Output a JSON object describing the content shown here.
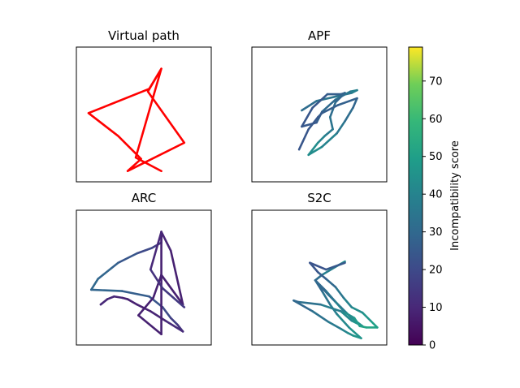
{
  "chart_data": [
    {
      "type": "line",
      "title": "Virtual path",
      "xlim": [
        0,
        1
      ],
      "ylim": [
        0,
        1
      ],
      "grid": false,
      "color": "#ff0000",
      "series": [
        {
          "x": [
            0.63,
            0.53,
            0.8,
            0.38,
            0.48,
            0.31,
            0.09,
            0.54,
            0.63,
            0.44,
            0.63
          ],
          "y": [
            0.84,
            0.67,
            0.29,
            0.08,
            0.17,
            0.34,
            0.51,
            0.69,
            0.84,
            0.18,
            0.08
          ],
          "scores": []
        }
      ]
    },
    {
      "type": "line",
      "title": "APF",
      "xlim": [
        0,
        1
      ],
      "ylim": [
        0,
        1
      ],
      "grid": false,
      "series": [
        {
          "x": [
            0.37,
            0.48,
            0.74,
            0.78
          ],
          "y": [
            0.53,
            0.6,
            0.66,
            0.68
          ],
          "scores": [
            30,
            33,
            36,
            40
          ]
        },
        {
          "x": [
            0.78,
            0.73,
            0.62,
            0.52,
            0.48,
            0.37
          ],
          "y": [
            0.68,
            0.67,
            0.61,
            0.52,
            0.44,
            0.41
          ],
          "scores": [
            40,
            38,
            33,
            28,
            26,
            24
          ]
        },
        {
          "x": [
            0.37,
            0.45,
            0.56,
            0.66,
            0.69
          ],
          "y": [
            0.41,
            0.55,
            0.65,
            0.65,
            0.66
          ],
          "scores": [
            24,
            24,
            25,
            28,
            28
          ]
        },
        {
          "x": [
            0.69,
            0.62,
            0.58,
            0.6,
            0.54,
            0.49,
            0.42
          ],
          "y": [
            0.66,
            0.59,
            0.48,
            0.39,
            0.34,
            0.29,
            0.2
          ],
          "scores": [
            28,
            30,
            33,
            35,
            38,
            42,
            45
          ]
        },
        {
          "x": [
            0.42,
            0.52,
            0.63,
            0.69,
            0.75,
            0.78
          ],
          "y": [
            0.2,
            0.26,
            0.36,
            0.45,
            0.55,
            0.62
          ],
          "scores": [
            45,
            42,
            38,
            33,
            30,
            28
          ]
        },
        {
          "x": [
            0.78,
            0.64,
            0.52,
            0.49,
            0.42,
            0.35
          ],
          "y": [
            0.62,
            0.57,
            0.51,
            0.48,
            0.39,
            0.24
          ],
          "scores": [
            28,
            27,
            26,
            25,
            24,
            24
          ]
        }
      ]
    },
    {
      "type": "line",
      "title": "ARC",
      "xlim": [
        0,
        1
      ],
      "ylim": [
        0,
        1
      ],
      "grid": false,
      "series": [
        {
          "x": [
            0.63,
            0.63,
            0.56,
            0.45,
            0.31,
            0.26,
            0.16,
            0.11
          ],
          "y": [
            0.84,
            0.76,
            0.72,
            0.68,
            0.61,
            0.57,
            0.49,
            0.41
          ],
          "scores": [
            10,
            14,
            18,
            22,
            26,
            28,
            30,
            30
          ]
        },
        {
          "x": [
            0.11,
            0.34,
            0.54,
            0.64,
            0.7,
            0.75,
            0.79
          ],
          "y": [
            0.41,
            0.4,
            0.36,
            0.28,
            0.2,
            0.15,
            0.1
          ],
          "scores": [
            30,
            28,
            25,
            22,
            18,
            15,
            12
          ]
        },
        {
          "x": [
            0.79,
            0.66,
            0.55,
            0.45,
            0.38,
            0.34,
            0.28,
            0.23,
            0.18
          ],
          "y": [
            0.1,
            0.18,
            0.25,
            0.3,
            0.34,
            0.35,
            0.36,
            0.34,
            0.3
          ],
          "scores": [
            12,
            10,
            8,
            8,
            8,
            8,
            10,
            10,
            10
          ]
        },
        {
          "x": [
            0.63,
            0.7,
            0.79,
            0.63,
            0.57,
            0.46
          ],
          "y": [
            0.84,
            0.7,
            0.3,
            0.52,
            0.35,
            0.22
          ],
          "scores": [
            10,
            8,
            8,
            8,
            8,
            8
          ]
        },
        {
          "x": [
            0.46,
            0.63,
            0.63,
            0.55,
            0.64,
            0.8
          ],
          "y": [
            0.22,
            0.08,
            0.84,
            0.56,
            0.42,
            0.28
          ],
          "scores": [
            8,
            8,
            8,
            12,
            14,
            16
          ]
        }
      ]
    },
    {
      "type": "line",
      "title": "S2C",
      "xlim": [
        0,
        1
      ],
      "ylim": [
        0,
        1
      ],
      "grid": false,
      "series": [
        {
          "x": [
            0.69,
            0.62,
            0.52,
            0.47
          ],
          "y": [
            0.62,
            0.58,
            0.52,
            0.48
          ],
          "scores": [
            45,
            42,
            35,
            28
          ]
        },
        {
          "x": [
            0.47,
            0.57,
            0.66,
            0.7,
            0.74,
            0.82
          ],
          "y": [
            0.48,
            0.37,
            0.28,
            0.24,
            0.2,
            0.14
          ],
          "scores": [
            28,
            30,
            33,
            36,
            40,
            48
          ]
        },
        {
          "x": [
            0.82,
            0.74,
            0.66,
            0.51,
            0.34,
            0.31
          ],
          "y": [
            0.14,
            0.18,
            0.25,
            0.3,
            0.32,
            0.33
          ],
          "scores": [
            48,
            44,
            40,
            36,
            30,
            28
          ]
        },
        {
          "x": [
            0.31,
            0.45,
            0.57,
            0.66,
            0.71,
            0.75,
            0.81
          ],
          "y": [
            0.33,
            0.25,
            0.17,
            0.12,
            0.09,
            0.07,
            0.05
          ],
          "scores": [
            28,
            32,
            35,
            38,
            42,
            45,
            48
          ]
        },
        {
          "x": [
            0.81,
            0.72,
            0.63,
            0.58,
            0.52,
            0.47
          ],
          "y": [
            0.05,
            0.13,
            0.23,
            0.3,
            0.4,
            0.48
          ],
          "scores": [
            48,
            44,
            40,
            36,
            32,
            28
          ]
        },
        {
          "x": [
            0.47,
            0.55,
            0.62,
            0.69,
            0.76,
            0.8,
            0.85,
            0.93
          ],
          "y": [
            0.48,
            0.4,
            0.32,
            0.24,
            0.2,
            0.14,
            0.13,
            0.13
          ],
          "scores": [
            28,
            32,
            36,
            42,
            46,
            50,
            52,
            52
          ]
        },
        {
          "x": [
            0.93,
            0.88,
            0.82,
            0.74,
            0.68,
            0.62,
            0.55,
            0.49,
            0.43
          ],
          "y": [
            0.13,
            0.18,
            0.24,
            0.28,
            0.35,
            0.43,
            0.49,
            0.54,
            0.61
          ],
          "scores": [
            52,
            48,
            45,
            42,
            38,
            32,
            28,
            25,
            22
          ]
        },
        {
          "x": [
            0.43,
            0.55,
            0.69
          ],
          "y": [
            0.61,
            0.56,
            0.61
          ],
          "scores": [
            22,
            24,
            26
          ]
        }
      ]
    }
  ],
  "colorbar": {
    "label": "Incompatibility score",
    "min": 0,
    "max": 79,
    "ticks": [
      "0",
      "10",
      "20",
      "30",
      "40",
      "50",
      "60",
      "70"
    ],
    "tick_values": [
      0,
      10,
      20,
      30,
      40,
      50,
      60,
      70
    ],
    "colormap": "viridis"
  }
}
